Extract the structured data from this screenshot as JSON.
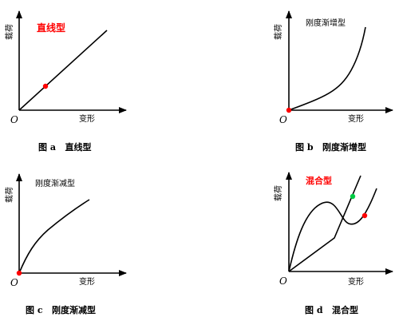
{
  "panels": [
    {
      "title": "直线型",
      "title_color": "#ff0000",
      "y_label": "载荷",
      "x_label": "变形",
      "origin": "O",
      "caption": "图 a   直线型",
      "marker_colors": [
        "#ff0000"
      ]
    },
    {
      "title": "刚度渐增型",
      "title_color": "#000000",
      "y_label": "载荷",
      "x_label": "变形",
      "origin": "O",
      "caption": "图 b   刚度渐增型",
      "marker_colors": [
        "#ff0000"
      ]
    },
    {
      "title": "刚度渐减型",
      "title_color": "#000000",
      "y_label": "载荷",
      "x_label": "变形",
      "origin": "O",
      "caption": "图 c   刚度渐减型",
      "marker_colors": [
        "#ff0000"
      ]
    },
    {
      "title": "混合型",
      "title_color": "#ff0000",
      "y_label": "载荷",
      "x_label": "变形",
      "origin": "O",
      "caption": "图 d   混合型",
      "marker_colors": [
        "#00cc44",
        "#ff0000"
      ]
    }
  ]
}
